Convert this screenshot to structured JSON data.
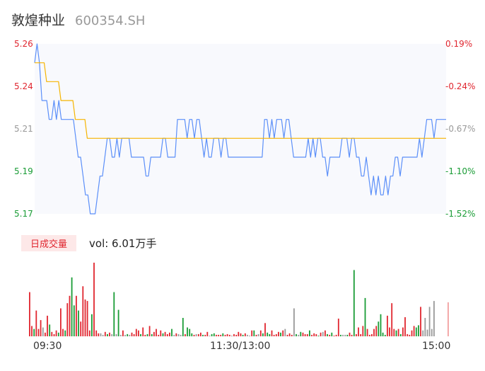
{
  "header": {
    "name": "敦煌种业",
    "code": "600354.SH"
  },
  "chart_data": [
    {
      "type": "line",
      "title": "",
      "ylim": [
        5.17,
        5.26
      ],
      "y_ticks_left": [
        "5.26",
        "5.24",
        "5.21",
        "5.19",
        "5.17"
      ],
      "y_ticks_right": [
        "0.19%",
        "-0.24%",
        "-0.67%",
        "-1.10%",
        "-1.52%"
      ],
      "x_ticks": [
        "09:30",
        "11:30/13:00",
        "15:00"
      ],
      "colors": {
        "price": "#5b8ff9",
        "avg": "#f5b400",
        "up": "#e0262f",
        "down": "#1a9c36",
        "flat": "#999999"
      },
      "series": [
        {
          "name": "price",
          "values": [
            5.25,
            5.26,
            5.25,
            5.23,
            5.23,
            5.23,
            5.22,
            5.22,
            5.23,
            5.22,
            5.23,
            5.22,
            5.22,
            5.22,
            5.22,
            5.22,
            5.22,
            5.21,
            5.2,
            5.2,
            5.19,
            5.18,
            5.18,
            5.17,
            5.17,
            5.17,
            5.18,
            5.19,
            5.19,
            5.2,
            5.21,
            5.21,
            5.2,
            5.2,
            5.21,
            5.2,
            5.21,
            5.21,
            5.21,
            5.21,
            5.2,
            5.2,
            5.2,
            5.2,
            5.2,
            5.2,
            5.19,
            5.19,
            5.2,
            5.2,
            5.2,
            5.2,
            5.2,
            5.21,
            5.21,
            5.2,
            5.2,
            5.2,
            5.2,
            5.22,
            5.22,
            5.22,
            5.22,
            5.21,
            5.22,
            5.22,
            5.21,
            5.22,
            5.22,
            5.21,
            5.2,
            5.21,
            5.2,
            5.2,
            5.21,
            5.21,
            5.21,
            5.2,
            5.21,
            5.21,
            5.2,
            5.2,
            5.2,
            5.2,
            5.2,
            5.2,
            5.2,
            5.2,
            5.2,
            5.2,
            5.2,
            5.2,
            5.2,
            5.2,
            5.2,
            5.22,
            5.22,
            5.21,
            5.22,
            5.21,
            5.22,
            5.22,
            5.22,
            5.21,
            5.22,
            5.22,
            5.21,
            5.2,
            5.2,
            5.2,
            5.2,
            5.2,
            5.2,
            5.21,
            5.2,
            5.21,
            5.2,
            5.21,
            5.21,
            5.2,
            5.2,
            5.19,
            5.2,
            5.2,
            5.2,
            5.2,
            5.2,
            5.21,
            5.21,
            5.21,
            5.2,
            5.21,
            5.21,
            5.2,
            5.2,
            5.19,
            5.19,
            5.2,
            5.19,
            5.18,
            5.19,
            5.18,
            5.19,
            5.18,
            5.18,
            5.19,
            5.18,
            5.19,
            5.19,
            5.2,
            5.2,
            5.19,
            5.2,
            5.2,
            5.2,
            5.2,
            5.2,
            5.2,
            5.2,
            5.21,
            5.2,
            5.21,
            5.22,
            5.22,
            5.22,
            5.21,
            5.22,
            5.22,
            5.22,
            5.22,
            5.22
          ]
        },
        {
          "name": "avg",
          "values": [
            5.25,
            5.25,
            5.25,
            5.25,
            5.25,
            5.24,
            5.24,
            5.24,
            5.24,
            5.24,
            5.24,
            5.23,
            5.23,
            5.23,
            5.23,
            5.23,
            5.23,
            5.22,
            5.22,
            5.22,
            5.22,
            5.22,
            5.21,
            5.21,
            5.21,
            5.21,
            5.21,
            5.21,
            5.21,
            5.21,
            5.21,
            5.21,
            5.21,
            5.21,
            5.21,
            5.21,
            5.21,
            5.21,
            5.21,
            5.21,
            5.21,
            5.21,
            5.21,
            5.21,
            5.21,
            5.21,
            5.21,
            5.21,
            5.21,
            5.21,
            5.21,
            5.21,
            5.21,
            5.21,
            5.21,
            5.21,
            5.21,
            5.21,
            5.21,
            5.21,
            5.21,
            5.21,
            5.21,
            5.21,
            5.21,
            5.21,
            5.21,
            5.21,
            5.21,
            5.21,
            5.21,
            5.21,
            5.21,
            5.21,
            5.21,
            5.21,
            5.21,
            5.21,
            5.21,
            5.21,
            5.21,
            5.21,
            5.21,
            5.21,
            5.21,
            5.21,
            5.21,
            5.21,
            5.21,
            5.21,
            5.21,
            5.21,
            5.21,
            5.21,
            5.21,
            5.21,
            5.21,
            5.21,
            5.21,
            5.21,
            5.21,
            5.21,
            5.21,
            5.21,
            5.21,
            5.21,
            5.21,
            5.21,
            5.21,
            5.21,
            5.21,
            5.21,
            5.21,
            5.21,
            5.21,
            5.21,
            5.21,
            5.21,
            5.21,
            5.21,
            5.21,
            5.21,
            5.21,
            5.21,
            5.21,
            5.21,
            5.21,
            5.21,
            5.21,
            5.21,
            5.21,
            5.21,
            5.21,
            5.21,
            5.21,
            5.21,
            5.21,
            5.21,
            5.21,
            5.21,
            5.21,
            5.21,
            5.21,
            5.21,
            5.21,
            5.21,
            5.21,
            5.21,
            5.21,
            5.21,
            5.21,
            5.21,
            5.21,
            5.21,
            5.21,
            5.21,
            5.21,
            5.21,
            5.21,
            5.21,
            5.21,
            5.21,
            5.21,
            5.21,
            5.21,
            5.21,
            5.21,
            5.21,
            5.21,
            5.21,
            5.21,
            5.21,
            5.21
          ]
        }
      ]
    },
    {
      "type": "bar",
      "title": "",
      "legend": "日成交量",
      "volume_label": "vol: 6.01万手",
      "ylim": [
        0,
        100
      ],
      "values": [
        60,
        14,
        10,
        35,
        10,
        22,
        12,
        5,
        28,
        16,
        6,
        3,
        8,
        5,
        38,
        10,
        8,
        45,
        55,
        80,
        42,
        55,
        35,
        20,
        68,
        50,
        48,
        8,
        30,
        100,
        8,
        4,
        4,
        2,
        6,
        3,
        5,
        3,
        60,
        3,
        36,
        2,
        8,
        2,
        3,
        2,
        5,
        3,
        10,
        8,
        3,
        12,
        2,
        3,
        14,
        3,
        6,
        10,
        2,
        8,
        4,
        6,
        3,
        5,
        10,
        2,
        4,
        3,
        2,
        25,
        3,
        12,
        10,
        4,
        2,
        3,
        3,
        5,
        2,
        2,
        6,
        1,
        3,
        4,
        2,
        2,
        2,
        4,
        2,
        3,
        2,
        1,
        3,
        2,
        6,
        4,
        2,
        4,
        2,
        1,
        8,
        8,
        2,
        3,
        8,
        4,
        18,
        5,
        3,
        8,
        2,
        3,
        6,
        5,
        8,
        10,
        2,
        4,
        2,
        38,
        3,
        2,
        6,
        5,
        3,
        3,
        8,
        2,
        4,
        3,
        1,
        5,
        6,
        8,
        3,
        2,
        5,
        1,
        2,
        24,
        2,
        2,
        2,
        2,
        5,
        2,
        90,
        3,
        12,
        3,
        14,
        52,
        10,
        2,
        3,
        10,
        14,
        20,
        30,
        5,
        2,
        28,
        12,
        45,
        10,
        8,
        10,
        3,
        12,
        26,
        3,
        2,
        8,
        14,
        12,
        15,
        40,
        8,
        25,
        9,
        40,
        10,
        48
      ],
      "colors": [
        "up",
        "up",
        "down",
        "up",
        "up",
        "up",
        "flat",
        "up",
        "up",
        "down",
        "up",
        "up",
        "up",
        "down",
        "up",
        "up",
        "down",
        "up",
        "up",
        "down",
        "down",
        "up",
        "down",
        "up",
        "up",
        "up",
        "up",
        "up",
        "down",
        "up",
        "up",
        "up",
        "flat",
        "flat",
        "up",
        "down",
        "up",
        "flat",
        "down",
        "flat",
        "down",
        "flat",
        "up",
        "flat",
        "down",
        "flat",
        "up",
        "up",
        "up",
        "up",
        "down",
        "up",
        "up",
        "down",
        "up",
        "down",
        "up",
        "up",
        "up",
        "up",
        "down",
        "up",
        "up",
        "up",
        "down",
        "flat",
        "up",
        "flat",
        "flat",
        "down",
        "up",
        "down",
        "down",
        "down",
        "up",
        "flat",
        "up",
        "up",
        "down",
        "up",
        "up",
        "flat",
        "down",
        "down",
        "up",
        "up",
        "up",
        "down",
        "up",
        "up",
        "up",
        "flat",
        "up",
        "up",
        "up",
        "up",
        "down",
        "up",
        "flat",
        "flat",
        "up",
        "down",
        "up",
        "flat",
        "up",
        "down",
        "up",
        "down",
        "down",
        "up",
        "up",
        "up",
        "up",
        "down",
        "up",
        "flat",
        "up",
        "up",
        "up",
        "flat",
        "down",
        "flat",
        "down",
        "up",
        "up",
        "up",
        "down",
        "up",
        "up",
        "up",
        "down",
        "up",
        "flat",
        "up",
        "down",
        "up",
        "down",
        "up",
        "up",
        "up",
        "down",
        "flat",
        "flat",
        "down",
        "up",
        "up",
        "down",
        "up",
        "up",
        "up",
        "up",
        "down",
        "up",
        "up",
        "up",
        "up",
        "up",
        "down",
        "down",
        "down",
        "down",
        "up",
        "up",
        "up",
        "up",
        "down",
        "up",
        "down",
        "up",
        "up",
        "up",
        "up",
        "up",
        "up",
        "down",
        "down",
        "up",
        "flat"
      ]
    }
  ]
}
